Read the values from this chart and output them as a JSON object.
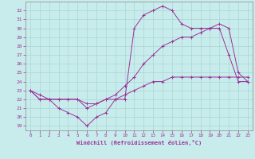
{
  "xlabel": "Windchill (Refroidissement éolien,°C)",
  "xlim": [
    -0.5,
    23.5
  ],
  "ylim": [
    18.5,
    33.0
  ],
  "yticks": [
    19,
    20,
    21,
    22,
    23,
    24,
    25,
    26,
    27,
    28,
    29,
    30,
    31,
    32
  ],
  "xticks": [
    0,
    1,
    2,
    3,
    4,
    5,
    6,
    7,
    8,
    9,
    10,
    11,
    12,
    13,
    14,
    15,
    16,
    17,
    18,
    19,
    20,
    21,
    22,
    23
  ],
  "bg_color": "#c8ecec",
  "line_color": "#993399",
  "grid_color": "#aad4d4",
  "line1_x": [
    0,
    1,
    2,
    3,
    4,
    5,
    6,
    7,
    8,
    9,
    10,
    11,
    12,
    13,
    14,
    15,
    16,
    17,
    18,
    19,
    20,
    21,
    22,
    23
  ],
  "line1_y": [
    23,
    22,
    22,
    21,
    20.5,
    20,
    19,
    20,
    20.5,
    22,
    22,
    30,
    31.5,
    32,
    32.5,
    32,
    30.5,
    30,
    30,
    30,
    30,
    27,
    24,
    24
  ],
  "line2_x": [
    0,
    1,
    2,
    3,
    4,
    5,
    6,
    7,
    8,
    9,
    10,
    11,
    12,
    13,
    14,
    15,
    16,
    17,
    18,
    19,
    20,
    21,
    22,
    23
  ],
  "line2_y": [
    23,
    22.5,
    22,
    22,
    22,
    22,
    21,
    21.5,
    22,
    22.5,
    23.5,
    24.5,
    26,
    27,
    28,
    28.5,
    29,
    29,
    29.5,
    30,
    30.5,
    30,
    25,
    24
  ],
  "line3_x": [
    0,
    1,
    2,
    3,
    4,
    5,
    6,
    7,
    8,
    9,
    10,
    11,
    12,
    13,
    14,
    15,
    16,
    17,
    18,
    19,
    20,
    21,
    22,
    23
  ],
  "line3_y": [
    23.0,
    22.0,
    22.0,
    22.0,
    22.0,
    22.0,
    21.5,
    21.5,
    22.0,
    22.0,
    22.5,
    23.0,
    23.5,
    24.0,
    24.0,
    24.5,
    24.5,
    24.5,
    24.5,
    24.5,
    24.5,
    24.5,
    24.5,
    24.5
  ]
}
